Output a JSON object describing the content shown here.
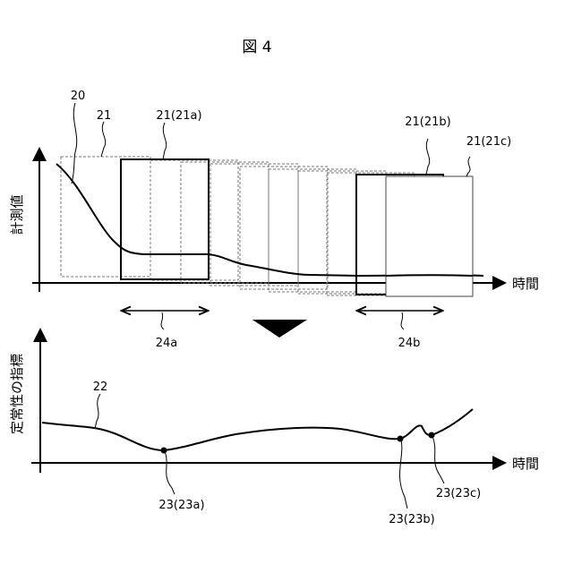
{
  "figure_title": "図 4",
  "top_panel": {
    "y_axis_label": "計測値",
    "x_axis_label": "時間",
    "labels": {
      "curve": "20",
      "window": "21",
      "window_a": "21(21a)",
      "window_b": "21(21b)",
      "window_c": "21(21c)",
      "range_a": "24a",
      "range_b": "24b"
    }
  },
  "bottom_panel": {
    "y_axis_label": "定常性の指標",
    "x_axis_label": "時間",
    "labels": {
      "curve": "22",
      "point_a": "23(23a)",
      "point_b": "23(23b)",
      "point_c": "23(23c)"
    }
  }
}
